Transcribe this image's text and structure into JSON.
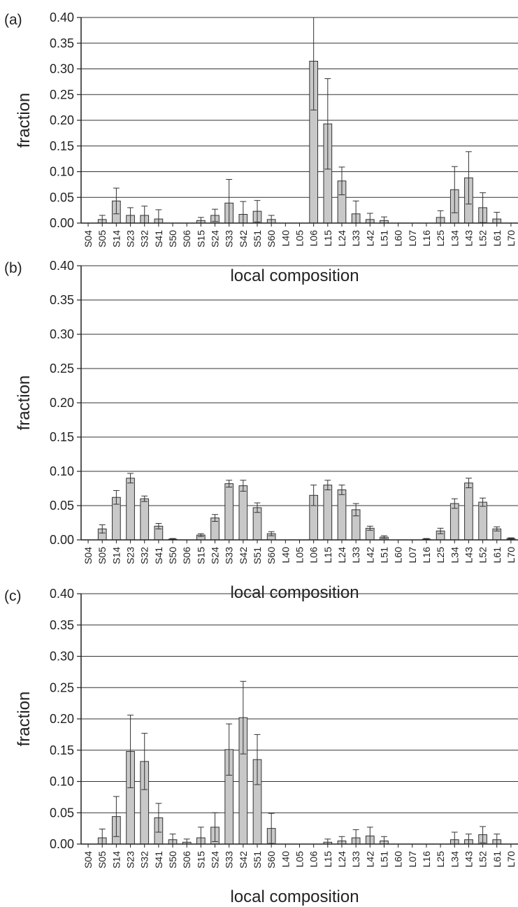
{
  "chart_data": [
    {
      "type": "bar",
      "panel_label": "(a)",
      "xlabel": "local composition",
      "ylabel": "fraction",
      "ylim": [
        0,
        0.4
      ],
      "yticks": [
        "0.00",
        "0.05",
        "0.10",
        "0.15",
        "0.20",
        "0.25",
        "0.30",
        "0.35",
        "0.40"
      ],
      "grid": true,
      "categories": [
        "S04",
        "S05",
        "S14",
        "S23",
        "S32",
        "S41",
        "S50",
        "S06",
        "S15",
        "S24",
        "S33",
        "S42",
        "S51",
        "S60",
        "L40",
        "L05",
        "L06",
        "L15",
        "L24",
        "L33",
        "L42",
        "L51",
        "L60",
        "L07",
        "L16",
        "L25",
        "L34",
        "L43",
        "L52",
        "L61",
        "L70"
      ],
      "values": [
        0,
        0.007,
        0.043,
        0.015,
        0.015,
        0.008,
        0,
        0,
        0.005,
        0.015,
        0.039,
        0.017,
        0.023,
        0.007,
        0,
        0,
        0.315,
        0.193,
        0.082,
        0.018,
        0.007,
        0.005,
        0,
        0,
        0,
        0.011,
        0.065,
        0.088,
        0.03,
        0.008,
        0
      ],
      "errors": [
        0,
        0.008,
        0.025,
        0.015,
        0.018,
        0.018,
        0,
        0,
        0.006,
        0.012,
        0.046,
        0.025,
        0.021,
        0.008,
        0,
        0,
        0.095,
        0.088,
        0.027,
        0.025,
        0.012,
        0.007,
        0,
        0,
        0,
        0.013,
        0.045,
        0.051,
        0.029,
        0.013,
        0
      ]
    },
    {
      "type": "bar",
      "panel_label": "(b)",
      "xlabel": "local composition",
      "ylabel": "fraction",
      "ylim": [
        0,
        0.4
      ],
      "yticks": [
        "0.00",
        "0.05",
        "0.10",
        "0.15",
        "0.20",
        "0.25",
        "0.30",
        "0.35",
        "0.40"
      ],
      "grid": true,
      "categories": [
        "S04",
        "S05",
        "S14",
        "S23",
        "S32",
        "S41",
        "S50",
        "S06",
        "S15",
        "S24",
        "S33",
        "S42",
        "S51",
        "S60",
        "L40",
        "L05",
        "L06",
        "L15",
        "L24",
        "L33",
        "L42",
        "L51",
        "L60",
        "L07",
        "L16",
        "L25",
        "L34",
        "L43",
        "L52",
        "L61",
        "L70"
      ],
      "values": [
        0,
        0.016,
        0.062,
        0.09,
        0.06,
        0.02,
        0.001,
        0,
        0.007,
        0.032,
        0.082,
        0.079,
        0.047,
        0.009,
        0,
        0,
        0.065,
        0.08,
        0.073,
        0.044,
        0.017,
        0.004,
        0,
        0,
        0.001,
        0.013,
        0.053,
        0.083,
        0.055,
        0.016,
        0.002
      ],
      "errors": [
        0,
        0.006,
        0.01,
        0.007,
        0.004,
        0.004,
        0.001,
        0,
        0.002,
        0.005,
        0.005,
        0.008,
        0.007,
        0.003,
        0,
        0,
        0.015,
        0.007,
        0.007,
        0.009,
        0.003,
        0.002,
        0,
        0,
        0.001,
        0.004,
        0.007,
        0.007,
        0.006,
        0.003,
        0.001
      ]
    },
    {
      "type": "bar",
      "panel_label": "(c)",
      "xlabel": "local composition",
      "ylabel": "fraction",
      "ylim": [
        0,
        0.4
      ],
      "yticks": [
        "0.00",
        "0.05",
        "0.10",
        "0.15",
        "0.20",
        "0.25",
        "0.30",
        "0.35",
        "0.40"
      ],
      "grid": true,
      "categories": [
        "S04",
        "S05",
        "S14",
        "S23",
        "S32",
        "S41",
        "S50",
        "S06",
        "S15",
        "S24",
        "S33",
        "S42",
        "S51",
        "S60",
        "L40",
        "L05",
        "L06",
        "L15",
        "L24",
        "L33",
        "L42",
        "L51",
        "L60",
        "L07",
        "L16",
        "L25",
        "L34",
        "L43",
        "L52",
        "L61",
        "L70"
      ],
      "values": [
        0,
        0.01,
        0.044,
        0.148,
        0.132,
        0.042,
        0.007,
        0.003,
        0.01,
        0.027,
        0.151,
        0.202,
        0.135,
        0.025,
        0,
        0,
        0,
        0.003,
        0.005,
        0.01,
        0.013,
        0.005,
        0,
        0,
        0,
        0,
        0.007,
        0.007,
        0.015,
        0.007,
        0
      ],
      "errors": [
        0,
        0.014,
        0.032,
        0.058,
        0.045,
        0.023,
        0.009,
        0.005,
        0.017,
        0.023,
        0.041,
        0.058,
        0.04,
        0.024,
        0,
        0,
        0,
        0.005,
        0.007,
        0.013,
        0.014,
        0.007,
        0,
        0,
        0,
        0,
        0.012,
        0.009,
        0.013,
        0.009,
        0
      ]
    }
  ]
}
